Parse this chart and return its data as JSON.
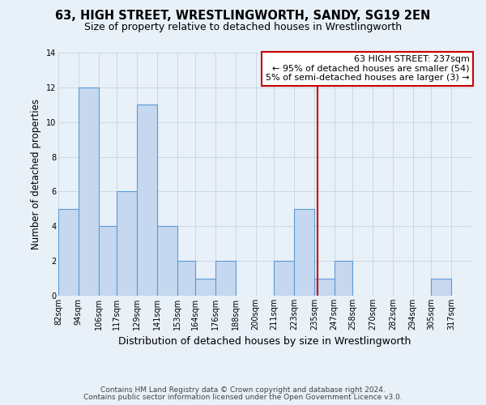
{
  "title": "63, HIGH STREET, WRESTLINGWORTH, SANDY, SG19 2EN",
  "subtitle": "Size of property relative to detached houses in Wrestlingworth",
  "xlabel": "Distribution of detached houses by size in Wrestlingworth",
  "ylabel": "Number of detached properties",
  "bar_labels": [
    "82sqm",
    "94sqm",
    "106sqm",
    "117sqm",
    "129sqm",
    "141sqm",
    "153sqm",
    "164sqm",
    "176sqm",
    "188sqm",
    "200sqm",
    "211sqm",
    "223sqm",
    "235sqm",
    "247sqm",
    "258sqm",
    "270sqm",
    "282sqm",
    "294sqm",
    "305sqm",
    "317sqm"
  ],
  "bar_values": [
    5,
    12,
    4,
    6,
    11,
    4,
    2,
    1,
    2,
    0,
    0,
    2,
    5,
    1,
    2,
    0,
    0,
    0,
    0,
    1,
    0
  ],
  "bar_edges": [
    82,
    94,
    106,
    117,
    129,
    141,
    153,
    164,
    176,
    188,
    200,
    211,
    223,
    235,
    247,
    258,
    270,
    282,
    294,
    305,
    317,
    329
  ],
  "bar_color": "#c5d8f0",
  "bar_edgecolor": "#5b9bd5",
  "grid_color": "#c8d4e0",
  "bg_color": "#e8f0f8",
  "vline_x": 237,
  "vline_color": "#cc0000",
  "annotation_title": "63 HIGH STREET: 237sqm",
  "annotation_line1": "← 95% of detached houses are smaller (54)",
  "annotation_line2": "5% of semi-detached houses are larger (3) →",
  "annotation_box_edgecolor": "#cc0000",
  "ylim": [
    0,
    14
  ],
  "yticks": [
    0,
    2,
    4,
    6,
    8,
    10,
    12,
    14
  ],
  "footer_line1": "Contains HM Land Registry data © Crown copyright and database right 2024.",
  "footer_line2": "Contains public sector information licensed under the Open Government Licence v3.0.",
  "title_fontsize": 10.5,
  "subtitle_fontsize": 9,
  "xlabel_fontsize": 9,
  "ylabel_fontsize": 8.5,
  "tick_fontsize": 7,
  "annotation_fontsize": 8,
  "footer_fontsize": 6.5
}
